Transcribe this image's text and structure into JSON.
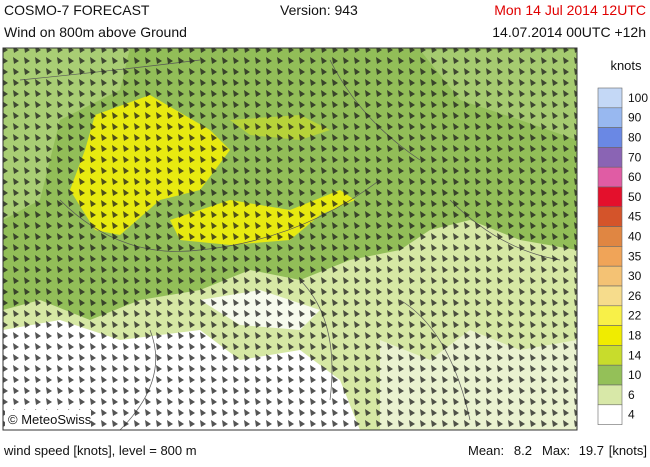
{
  "header": {
    "title": "COSMO-7 FORECAST",
    "version": "Version: 943",
    "valid_time": "Mon 14 Jul 2014 12UTC",
    "subtitle": "Wind on 800m above Ground",
    "run_time": "14.07.2014 00UTC +12h"
  },
  "map": {
    "credit": "© MeteoSwiss"
  },
  "legend": {
    "unit": "knots",
    "bins": [
      {
        "value": 100,
        "color": "#c4d8f6"
      },
      {
        "value": 90,
        "color": "#98b8f0"
      },
      {
        "value": 80,
        "color": "#6a88e4"
      },
      {
        "value": 70,
        "color": "#8a64b4"
      },
      {
        "value": 60,
        "color": "#e05ca4"
      },
      {
        "value": 50,
        "color": "#e4102c"
      },
      {
        "value": 45,
        "color": "#d4542a"
      },
      {
        "value": 40,
        "color": "#e08642"
      },
      {
        "value": 35,
        "color": "#f0a458"
      },
      {
        "value": 30,
        "color": "#f4c274"
      },
      {
        "value": 26,
        "color": "#f6dc8c"
      },
      {
        "value": 22,
        "color": "#f8f048"
      },
      {
        "value": 18,
        "color": "#f0ec00"
      },
      {
        "value": 14,
        "color": "#c8dc2c"
      },
      {
        "value": 10,
        "color": "#94c058"
      },
      {
        "value": 6,
        "color": "#d8e8a8"
      },
      {
        "value": 4,
        "color": "#ffffff"
      }
    ]
  },
  "footer": {
    "description": "wind speed [knots], level = 800 m",
    "mean_label": "Mean:",
    "mean": 8.2,
    "max_label": "Max:",
    "max": 19.7,
    "unit": "[knots]"
  }
}
